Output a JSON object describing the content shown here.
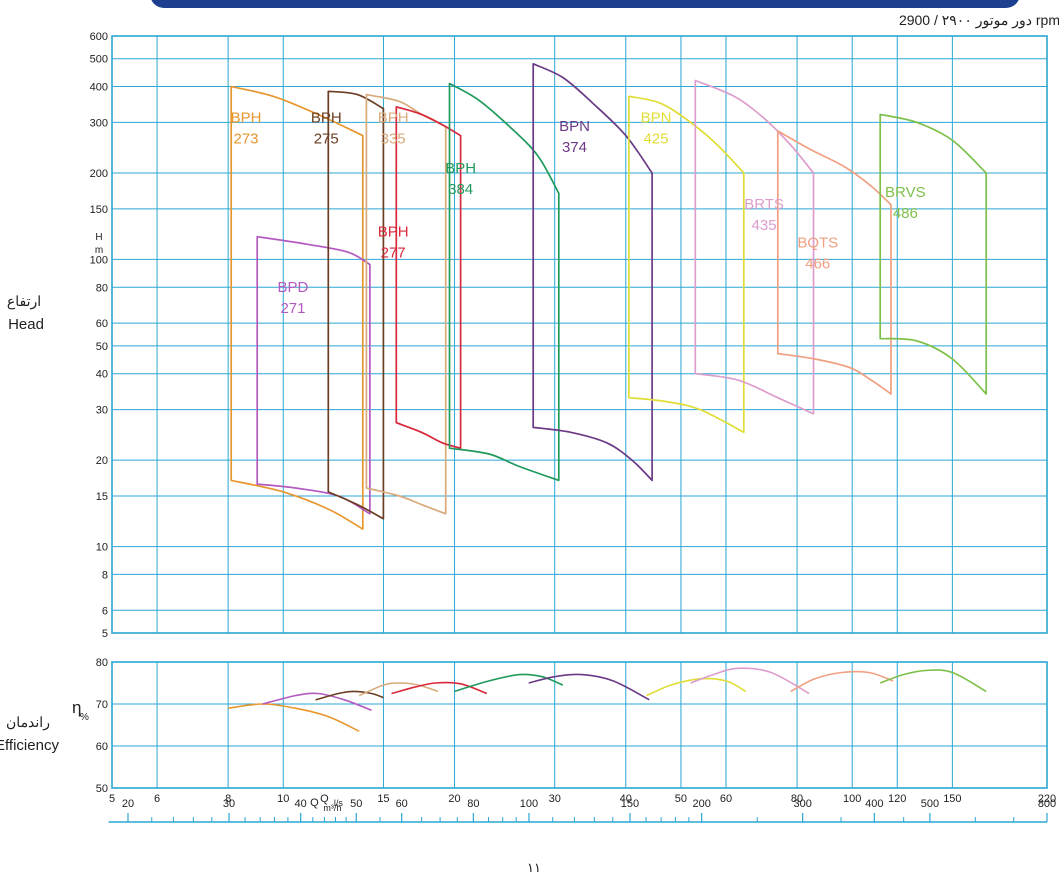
{
  "header": {
    "rpm_label": "دور موتور ۲۹۰۰ / 2900 rpm"
  },
  "side_labels": {
    "head_fa": "ارتفاع",
    "head_en": "Head",
    "eff_fa": "راندمان",
    "eff_en": "Efficiency",
    "eta": "η",
    "percent": "%"
  },
  "page_number": "۱۱",
  "colors": {
    "grid": "#2aa7d4",
    "text": "#222222",
    "BPH273": "#e8962e",
    "BPD271": "#b35ac1",
    "BPH275": "#6b3d22",
    "BPH335": "#d8aa7c",
    "BPH277": "#d8283a",
    "BPH384": "#1f9a5c",
    "BPN374": "#6b3a86",
    "BPN425": "#e1dd36",
    "BRTS435": "#dd9dcd",
    "BQTS466": "#f0a082",
    "BRVS486": "#7ec04a"
  },
  "chart_data": [
    {
      "type": "line",
      "title": "",
      "ylabel": "H m",
      "xlabel": "Q l/s",
      "x_scale": "log",
      "y_scale": "log",
      "xlim": [
        5,
        220
      ],
      "ylim": [
        5,
        600
      ],
      "x_ticks": [
        5,
        6,
        8,
        10,
        15,
        20,
        30,
        40,
        50,
        60,
        80,
        100,
        120,
        150,
        220
      ],
      "y_ticks": [
        5,
        6,
        8,
        10,
        15,
        20,
        30,
        40,
        50,
        60,
        80,
        100,
        150,
        200,
        300,
        400,
        500,
        600
      ],
      "y_tick_labels": [
        "5",
        "6",
        "8",
        "10",
        "15",
        "20",
        "30",
        "40",
        "50",
        "60",
        "80",
        "100",
        "150",
        "200",
        "300",
        "400",
        "500",
        "600"
      ],
      "y_unit_label": [
        "H",
        "m"
      ],
      "x_unit_label": "Q l/s",
      "series": [
        {
          "name": "BPH 273",
          "line1": "BPH",
          "line2": "273",
          "color_key": "BPH273",
          "label_at": [
            8.6,
            300
          ],
          "top": [
            [
              8.1,
              400
            ],
            [
              9.6,
              370
            ],
            [
              11.5,
              320
            ],
            [
              13.8,
              270
            ]
          ],
          "bottom": [
            [
              8.1,
              17
            ],
            [
              10,
              15.5
            ],
            [
              12,
              13.5
            ],
            [
              13.8,
              11.5
            ]
          ]
        },
        {
          "name": "BPD 271",
          "line1": "BPD",
          "line2": "271",
          "color_key": "BPD271",
          "label_at": [
            10.4,
            77
          ],
          "top": [
            [
              9.0,
              120
            ],
            [
              11,
              113
            ],
            [
              13,
              106
            ],
            [
              14.2,
              96
            ]
          ],
          "bottom": [
            [
              9.0,
              16.5
            ],
            [
              10.5,
              16
            ],
            [
              12.5,
              15
            ],
            [
              14.2,
              13
            ]
          ]
        },
        {
          "name": "BPH 275",
          "line1": "BPH",
          "line2": "275",
          "color_key": "BPH275",
          "label_at": [
            11.9,
            300
          ],
          "top": [
            [
              12.0,
              385
            ],
            [
              13.5,
              375
            ],
            [
              15,
              335
            ]
          ],
          "bottom": [
            [
              12.0,
              15.5
            ],
            [
              13.5,
              14
            ],
            [
              15,
              12.5
            ]
          ]
        },
        {
          "name": "BPH 335",
          "line1": "BPH",
          "line2": "335",
          "color_key": "BPH335",
          "label_at": [
            15.6,
            300
          ],
          "top": [
            [
              14.0,
              375
            ],
            [
              16,
              355
            ],
            [
              17.5,
              320
            ],
            [
              19.3,
              290
            ]
          ],
          "bottom": [
            [
              14.0,
              16
            ],
            [
              16,
              15
            ],
            [
              17.5,
              14
            ],
            [
              19.3,
              13
            ]
          ]
        },
        {
          "name": "BPH 277",
          "line1": "BPH",
          "line2": "277",
          "color_key": "BPH277",
          "label_at": [
            15.6,
            120
          ],
          "top": [
            [
              15.8,
              340
            ],
            [
              17.5,
              320
            ],
            [
              19,
              295
            ],
            [
              20.5,
              270
            ]
          ],
          "bottom": [
            [
              15.8,
              27
            ],
            [
              17.5,
              25
            ],
            [
              19,
              23
            ],
            [
              20.5,
              22
            ]
          ]
        },
        {
          "name": "BPH 384",
          "line1": "BPH",
          "line2": "384",
          "color_key": "BPH384",
          "label_at": [
            20.5,
            200
          ],
          "top": [
            [
              19.6,
              410
            ],
            [
              22,
              360
            ],
            [
              25,
              290
            ],
            [
              28,
              230
            ],
            [
              30.5,
              170
            ]
          ],
          "bottom": [
            [
              19.6,
              22
            ],
            [
              23,
              21
            ],
            [
              26,
              19
            ],
            [
              30.5,
              17
            ]
          ]
        },
        {
          "name": "BPN 374",
          "line1": "BPN",
          "line2": "374",
          "color_key": "BPN374",
          "label_at": [
            32.5,
            280
          ],
          "top": [
            [
              27.5,
              480
            ],
            [
              31,
              430
            ],
            [
              35,
              350
            ],
            [
              40,
              270
            ],
            [
              44.5,
              200
            ]
          ],
          "bottom": [
            [
              27.5,
              26
            ],
            [
              32,
              25
            ],
            [
              37,
              23
            ],
            [
              41,
              20
            ],
            [
              44.5,
              17
            ]
          ]
        },
        {
          "name": "BPN 425",
          "line1": "BPN",
          "line2": "425",
          "color_key": "BPN425",
          "label_at": [
            45.2,
            300
          ],
          "top": [
            [
              40.5,
              370
            ],
            [
              46,
              350
            ],
            [
              52,
              300
            ],
            [
              58,
              250
            ],
            [
              64.5,
              200
            ]
          ],
          "bottom": [
            [
              40.5,
              33
            ],
            [
              47,
              32
            ],
            [
              54,
              30
            ],
            [
              64.5,
              25
            ]
          ]
        },
        {
          "name": "BRTS 435",
          "line1": "BRTS",
          "line2": "435",
          "color_key": "BRTS435",
          "label_at": [
            70,
            150
          ],
          "top": [
            [
              53,
              420
            ],
            [
              62,
              370
            ],
            [
              70,
              310
            ],
            [
              78,
              250
            ],
            [
              85.5,
              200
            ]
          ],
          "bottom": [
            [
              53,
              40
            ],
            [
              63,
              38
            ],
            [
              74,
              33
            ],
            [
              85.5,
              29
            ]
          ]
        },
        {
          "name": "BQTS 466",
          "line1": "BQTS",
          "line2": "466",
          "color_key": "BQTS466",
          "label_at": [
            87,
            110
          ],
          "top": [
            [
              74,
              280
            ],
            [
              85,
              240
            ],
            [
              97,
              210
            ],
            [
              108,
              180
            ],
            [
              117,
              155
            ]
          ],
          "bottom": [
            [
              74,
              47
            ],
            [
              86,
              45
            ],
            [
              99,
              42
            ],
            [
              108,
              38
            ],
            [
              117,
              34
            ]
          ]
        },
        {
          "name": "BRVS 486",
          "line1": "BRVS",
          "line2": "486",
          "color_key": "BRVS486",
          "label_at": [
            124,
            165
          ],
          "top": [
            [
              112,
              320
            ],
            [
              130,
              300
            ],
            [
              150,
              260
            ],
            [
              172,
              200
            ]
          ],
          "bottom": [
            [
              112,
              53
            ],
            [
              130,
              52
            ],
            [
              150,
              45
            ],
            [
              172,
              34
            ]
          ]
        }
      ]
    },
    {
      "type": "line",
      "title": "",
      "ylabel": "η %",
      "xlabel": "Q l/s",
      "x_scale": "log",
      "xlim": [
        5,
        220
      ],
      "ylim": [
        50,
        80
      ],
      "y_ticks": [
        50,
        60,
        70,
        80
      ],
      "x_ticks": [
        5,
        6,
        8,
        10,
        15,
        20,
        30,
        40,
        50,
        60,
        80,
        100,
        120,
        150,
        220
      ],
      "series": [
        {
          "name": "BPH 273",
          "color_key": "BPH273",
          "x": [
            8,
            9.2,
            10.5,
            12,
            13.6
          ],
          "y": [
            69,
            70,
            69,
            67,
            63.5
          ]
        },
        {
          "name": "BPD 271",
          "color_key": "BPD271",
          "x": [
            9.2,
            10.5,
            11.5,
            12.8,
            14.3
          ],
          "y": [
            70,
            72,
            72.5,
            71,
            68.5
          ]
        },
        {
          "name": "BPH 275",
          "color_key": "BPH275",
          "x": [
            11.4,
            12.5,
            13.3,
            14.3,
            15
          ],
          "y": [
            71,
            72.5,
            73,
            72.5,
            71.5
          ]
        },
        {
          "name": "BPH 335",
          "color_key": "BPH335",
          "x": [
            13.6,
            15,
            16,
            17.3,
            18.7
          ],
          "y": [
            72,
            74.5,
            75,
            74.5,
            73
          ]
        },
        {
          "name": "BPH 277",
          "color_key": "BPH277",
          "x": [
            15.5,
            17,
            18.5,
            20.5,
            22.8
          ],
          "y": [
            72.5,
            74,
            75,
            74.8,
            72.5
          ]
        },
        {
          "name": "BPH 384",
          "color_key": "BPH384",
          "x": [
            20,
            23,
            26,
            28.5,
            31
          ],
          "y": [
            73,
            75.5,
            77,
            76.5,
            74.5
          ]
        },
        {
          "name": "BPN 374",
          "color_key": "BPN374",
          "x": [
            27,
            30,
            33.5,
            38,
            44
          ],
          "y": [
            75,
            76.5,
            77,
            75.5,
            71
          ]
        },
        {
          "name": "BPN 425",
          "color_key": "BPN425",
          "x": [
            43.5,
            48,
            54,
            60,
            65
          ],
          "y": [
            72,
            74.5,
            76,
            75.5,
            73
          ]
        },
        {
          "name": "BRTS 435",
          "color_key": "BRTS435",
          "x": [
            52,
            57,
            63,
            72,
            84
          ],
          "y": [
            75,
            77,
            78.5,
            77.5,
            72.5
          ]
        },
        {
          "name": "BQTS 466",
          "color_key": "BQTS466",
          "x": [
            78,
            86,
            96,
            107,
            118
          ],
          "y": [
            73,
            76,
            77.5,
            77.5,
            75.5
          ]
        },
        {
          "name": "BRVS 486",
          "color_key": "BRVS486",
          "x": [
            112,
            123,
            135,
            150,
            172
          ],
          "y": [
            75,
            77,
            78,
            77.5,
            73
          ]
        }
      ]
    },
    {
      "type": "scale",
      "xlabel": "Q m³/h",
      "x_scale": "log",
      "xlim": [
        18,
        800
      ],
      "major_ticks": [
        20,
        30,
        40,
        50,
        60,
        80,
        100,
        150,
        200,
        300,
        400,
        500,
        800
      ],
      "minor_ticks": [
        22,
        24,
        26,
        28,
        32,
        34,
        36,
        38,
        42,
        44,
        46,
        48,
        55,
        65,
        70,
        75,
        85,
        90,
        95,
        110,
        120,
        130,
        140,
        160,
        170,
        180,
        190,
        250,
        350,
        450,
        600,
        700
      ]
    }
  ]
}
